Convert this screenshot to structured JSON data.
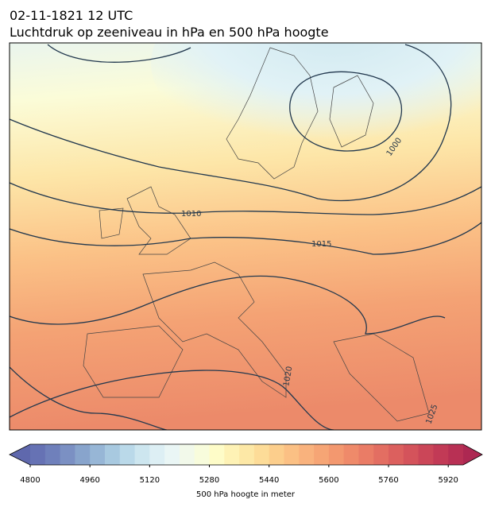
{
  "header": {
    "line1": "02-11-1821 12 UTC",
    "line2": "Luchtdruk op zeeniveau in hPa en 500 hPa hoogte"
  },
  "map": {
    "contour_labels": [
      "1000",
      "1010",
      "1015",
      "1020",
      "1025"
    ]
  },
  "colorbar": {
    "label": "500 hPa hoogte in meter",
    "range": [
      4800,
      5960
    ],
    "ticks": [
      4800,
      4960,
      5120,
      5280,
      5440,
      5600,
      5760,
      5920
    ]
  }
}
